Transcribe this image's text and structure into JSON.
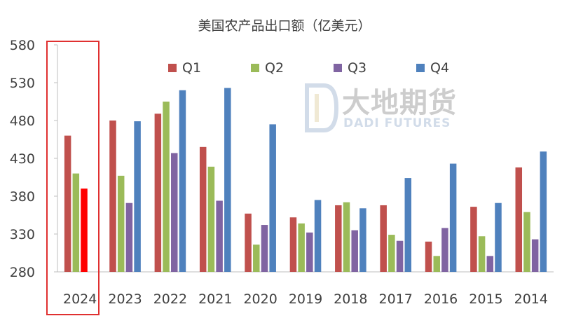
{
  "chart_data": {
    "type": "bar",
    "title": "美国农产品出口额（亿美元）",
    "categories": [
      "2024",
      "2023",
      "2022",
      "2021",
      "2020",
      "2019",
      "2018",
      "2017",
      "2016",
      "2015",
      "2014"
    ],
    "series": [
      {
        "name": "Q1",
        "color": "#c0504d",
        "values": [
          460,
          480,
          489,
          445,
          357,
          352,
          368,
          368,
          320,
          366,
          418
        ]
      },
      {
        "name": "Q2",
        "color": "#9bbb59",
        "values": [
          410,
          407,
          505,
          419,
          316,
          344,
          372,
          329,
          301,
          327,
          359
        ]
      },
      {
        "name": "Q3",
        "color": "#8064a2",
        "values": [
          390,
          371,
          437,
          374,
          342,
          332,
          335,
          321,
          338,
          301,
          323
        ]
      },
      {
        "name": "Q4",
        "color": "#4f81bd",
        "values": [
          null,
          479,
          520,
          523,
          475,
          375,
          364,
          404,
          423,
          371,
          439
        ]
      }
    ],
    "highlight_bar": {
      "category": "2024",
      "series": "Q3",
      "color": "#ff0000"
    },
    "yticks": [
      280,
      330,
      380,
      430,
      480,
      530,
      580
    ],
    "ylim": [
      280,
      580
    ],
    "grid": false,
    "legend_position": "top-center"
  },
  "watermark": {
    "cn": "大地期货",
    "en": "DADI FUTURES"
  }
}
